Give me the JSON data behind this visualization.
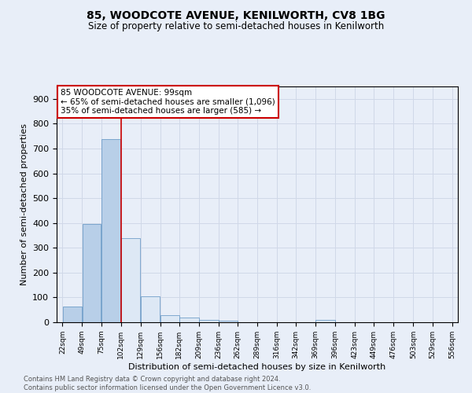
{
  "title1": "85, WOODCOTE AVENUE, KENILWORTH, CV8 1BG",
  "title2": "Size of property relative to semi-detached houses in Kenilworth",
  "xlabel": "Distribution of semi-detached houses by size in Kenilworth",
  "ylabel": "Number of semi-detached properties",
  "footer1": "Contains HM Land Registry data © Crown copyright and database right 2024.",
  "footer2": "Contains public sector information licensed under the Open Government Licence v3.0.",
  "annotation_line1": "85 WOODCOTE AVENUE: 99sqm",
  "annotation_line2": "← 65% of semi-detached houses are smaller (1,096)",
  "annotation_line3": "35% of semi-detached houses are larger (585) →",
  "property_size": 99,
  "bin_edges": [
    22,
    49,
    75,
    102,
    129,
    156,
    182,
    209,
    236,
    262,
    289,
    316,
    342,
    369,
    396,
    423,
    449,
    476,
    503,
    529,
    556
  ],
  "bin_values": [
    62,
    397,
    737,
    338,
    103,
    29,
    18,
    10,
    5,
    0,
    0,
    0,
    0,
    9,
    0,
    0,
    0,
    0,
    0,
    0
  ],
  "bar_color_left": "#b8cfe8",
  "bar_color_right": "#dde8f5",
  "bar_edge_color": "#5a8fc0",
  "vline_color": "#cc0000",
  "vline_x": 102,
  "annotation_box_color": "#ffffff",
  "annotation_box_edge": "#cc0000",
  "grid_color": "#d0d8e8",
  "background_color": "#e8eef8",
  "ylim": [
    0,
    950
  ],
  "yticks": [
    0,
    100,
    200,
    300,
    400,
    500,
    600,
    700,
    800,
    900
  ]
}
